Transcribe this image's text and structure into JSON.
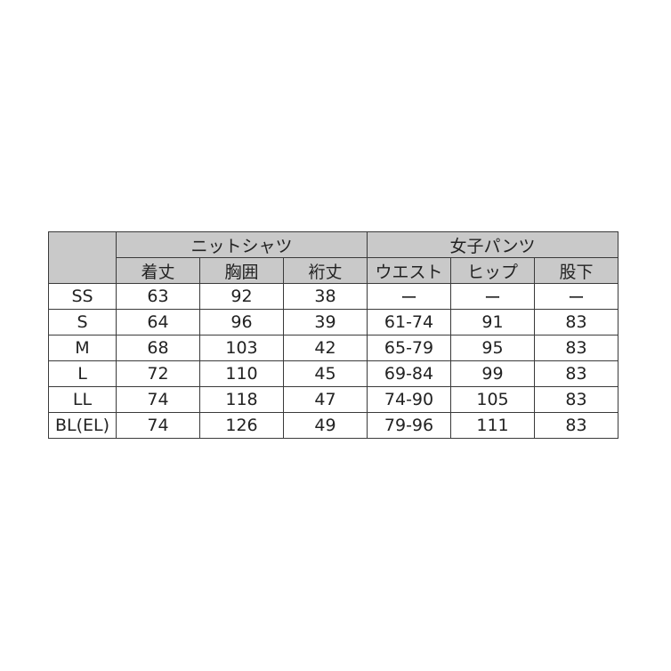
{
  "groups": [
    "ニットシャツ",
    "女子パンツ"
  ],
  "columns": [
    "着丈",
    "胸囲",
    "裄丈",
    "ウエスト",
    "ヒップ",
    "股下"
  ],
  "rows": [
    {
      "size": "SS",
      "values": [
        "63",
        "92",
        "38",
        "ー",
        "ー",
        "ー"
      ]
    },
    {
      "size": "S",
      "values": [
        "64",
        "96",
        "39",
        "61-74",
        "91",
        "83"
      ]
    },
    {
      "size": "M",
      "values": [
        "68",
        "103",
        "42",
        "65-79",
        "95",
        "83"
      ]
    },
    {
      "size": "L",
      "values": [
        "72",
        "110",
        "45",
        "69-84",
        "99",
        "83"
      ]
    },
    {
      "size": "LL",
      "values": [
        "74",
        "118",
        "47",
        "74-90",
        "105",
        "83"
      ]
    },
    {
      "size": "BL(EL)",
      "values": [
        "74",
        "126",
        "49",
        "79-96",
        "111",
        "83"
      ]
    }
  ],
  "colors": {
    "header_bg": "#c9c9c9",
    "border": "#3a3a3a"
  }
}
